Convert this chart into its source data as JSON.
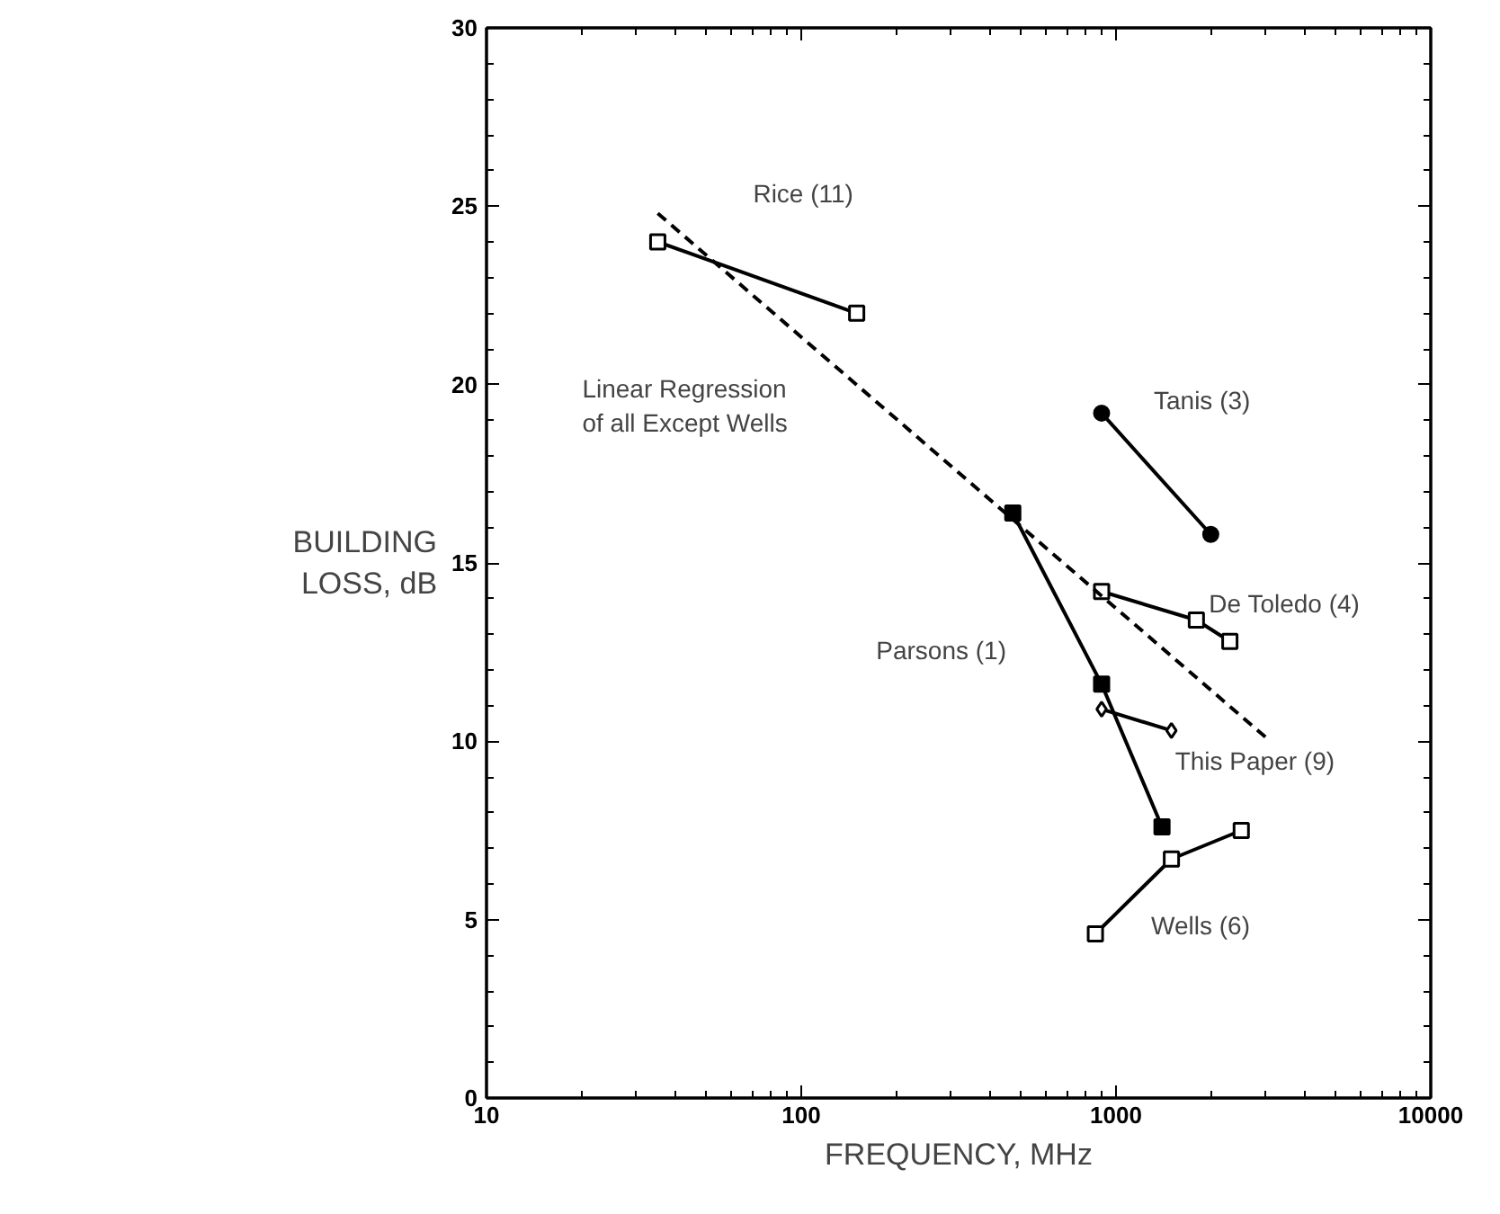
{
  "chart_data": {
    "type": "line",
    "xlabel": "FREQUENCY, MHz",
    "ylabel": "BUILDING\nLOSS, dB",
    "log": "x",
    "xlim": [
      10,
      10000
    ],
    "xticks": [
      10,
      100,
      1000,
      10000
    ],
    "ylim": [
      0,
      30
    ],
    "yticks": [
      0,
      5,
      10,
      15,
      20,
      25,
      30
    ],
    "grid": false,
    "line_style": "solid",
    "series": [
      {
        "name": "Rice (11)",
        "color": "#000000",
        "marker": "square",
        "x": [
          35,
          150
        ],
        "values": [
          24,
          22
        ]
      },
      {
        "name": "Tanis (3)",
        "color": "#000000",
        "marker": "circle",
        "x": [
          900,
          2000
        ],
        "values": [
          19.2,
          15.8
        ]
      },
      {
        "name": "De Toledo (4)",
        "color": "#000000",
        "marker": "square",
        "x": [
          900,
          1800,
          2300
        ],
        "values": [
          14.2,
          13.4,
          12.8
        ]
      },
      {
        "name": "Parsons (1)",
        "color": "#000000",
        "marker": "square",
        "x": [
          470,
          900,
          1400
        ],
        "values": [
          16.4,
          11.6,
          7.6
        ]
      },
      {
        "name": "This Paper (9)",
        "color": "#000000",
        "marker": "diamond",
        "x": [
          900,
          1500
        ],
        "values": [
          10.9,
          10.3
        ]
      },
      {
        "name": "Wells (6)",
        "color": "#000000",
        "marker": "square",
        "x": [
          860,
          1500,
          2500
        ],
        "values": [
          4.6,
          6.7,
          7.5
        ]
      },
      {
        "name": "Linear Regression\nof all Except Wells",
        "color": "#000000",
        "marker": "none",
        "line_style": "dashed",
        "x": [
          35,
          3000
        ],
        "values": [
          24.8,
          10.1
        ]
      }
    ]
  }
}
